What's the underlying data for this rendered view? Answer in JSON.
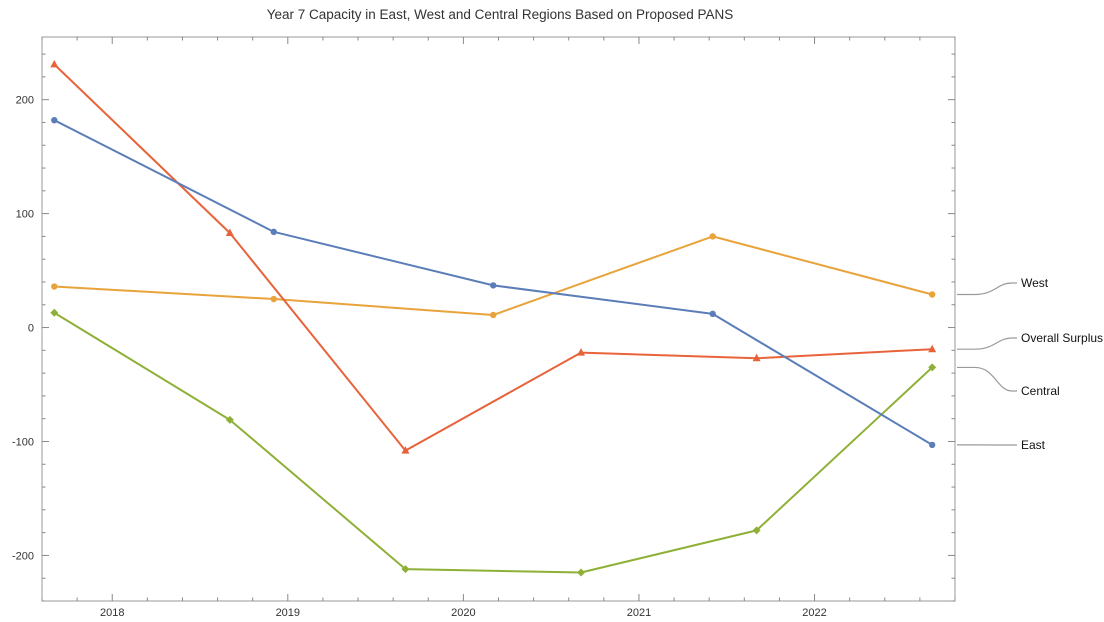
{
  "chart_data": {
    "type": "line",
    "title": "Year 7 Capacity in East, West and Central Regions Based on Proposed PANS",
    "xlabel": "",
    "ylabel": "",
    "xlim": [
      2017.6,
      2022.8
    ],
    "ylim": [
      -240,
      255
    ],
    "x_ticks": [
      "2018",
      "2019",
      "2020",
      "2021",
      "2022"
    ],
    "y_ticks": [
      "200",
      "100",
      "0",
      "-100",
      "-200"
    ],
    "grid": false,
    "legend_placement": "right",
    "series": [
      {
        "name": "West",
        "color": "#E8A33A",
        "marker": "circle",
        "points": [
          [
            2017.67,
            36
          ],
          [
            2018.92,
            25
          ],
          [
            2020.17,
            11
          ],
          [
            2021.42,
            80
          ],
          [
            2022.67,
            29
          ]
        ]
      },
      {
        "name": "Overall Surplus",
        "color": "#E8633A",
        "marker": "triangle",
        "points": [
          [
            2017.67,
            231
          ],
          [
            2018.67,
            83
          ],
          [
            2019.67,
            -108
          ],
          [
            2020.67,
            -22
          ],
          [
            2021.67,
            -27
          ],
          [
            2022.67,
            -19
          ]
        ]
      },
      {
        "name": "Central",
        "color": "#8FB036",
        "marker": "diamond",
        "points": [
          [
            2017.67,
            13
          ],
          [
            2018.67,
            -81
          ],
          [
            2019.67,
            -212
          ],
          [
            2020.67,
            -215
          ],
          [
            2021.67,
            -178
          ],
          [
            2022.67,
            -35
          ]
        ]
      },
      {
        "name": "East",
        "color": "#5B7DB8",
        "marker": "circle",
        "points": [
          [
            2017.67,
            182
          ],
          [
            2018.92,
            84
          ],
          [
            2020.17,
            37
          ],
          [
            2021.42,
            12
          ],
          [
            2022.67,
            -103
          ]
        ]
      }
    ]
  }
}
